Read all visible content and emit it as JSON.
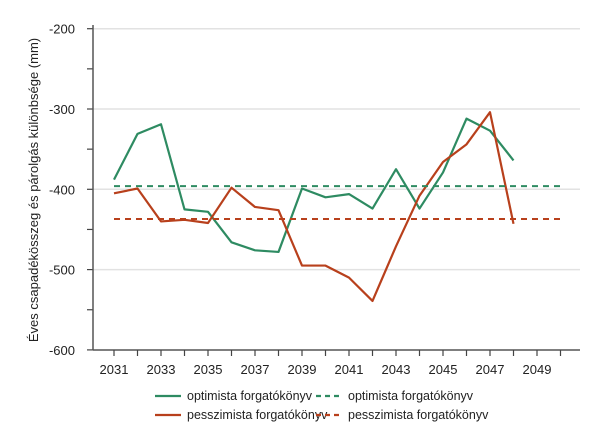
{
  "chart_data": {
    "type": "line",
    "title": "",
    "xlabel": "",
    "ylabel": "Éves csapadékösszeg és párolgás különbsége (mm)",
    "ylim": [
      -600,
      -200
    ],
    "yticks": [
      -200,
      -300,
      -400,
      -500,
      -600
    ],
    "xlim": [
      2030,
      2051
    ],
    "xticks": [
      2031,
      2033,
      2035,
      2037,
      2039,
      2041,
      2043,
      2045,
      2047,
      2049
    ],
    "grid": "horizontal",
    "legend_placement": "bottom",
    "x": [
      2031,
      2032,
      2033,
      2034,
      2035,
      2036,
      2037,
      2038,
      2039,
      2040,
      2041,
      2042,
      2043,
      2044,
      2045,
      2046,
      2047,
      2048
    ],
    "series": [
      {
        "name": "optimista forgatókönyv",
        "color": "#2e8b62",
        "style": "solid",
        "values": [
          -388,
          -331,
          -319,
          -425,
          -428,
          -466,
          -476,
          -478,
          -399,
          -410,
          -406,
          -424,
          -375,
          -424,
          -379,
          -312,
          -327,
          -364
        ]
      },
      {
        "name": "pesszimista forgatókönyv",
        "color": "#b8401c",
        "style": "solid",
        "values": [
          -405,
          -399,
          -440,
          -438,
          -442,
          -398,
          -422,
          -426,
          -495,
          -495,
          -510,
          -539,
          -471,
          -408,
          -366,
          -344,
          -304,
          -443
        ]
      },
      {
        "name": "optimista forgatókönyv",
        "color": "#2e8b62",
        "style": "dashed",
        "constant": -396,
        "x_range": [
          2031,
          2050
        ]
      },
      {
        "name": "pesszimista forgatókönyv",
        "color": "#b8401c",
        "style": "dashed",
        "constant": -437,
        "x_range": [
          2031,
          2050
        ]
      }
    ]
  }
}
